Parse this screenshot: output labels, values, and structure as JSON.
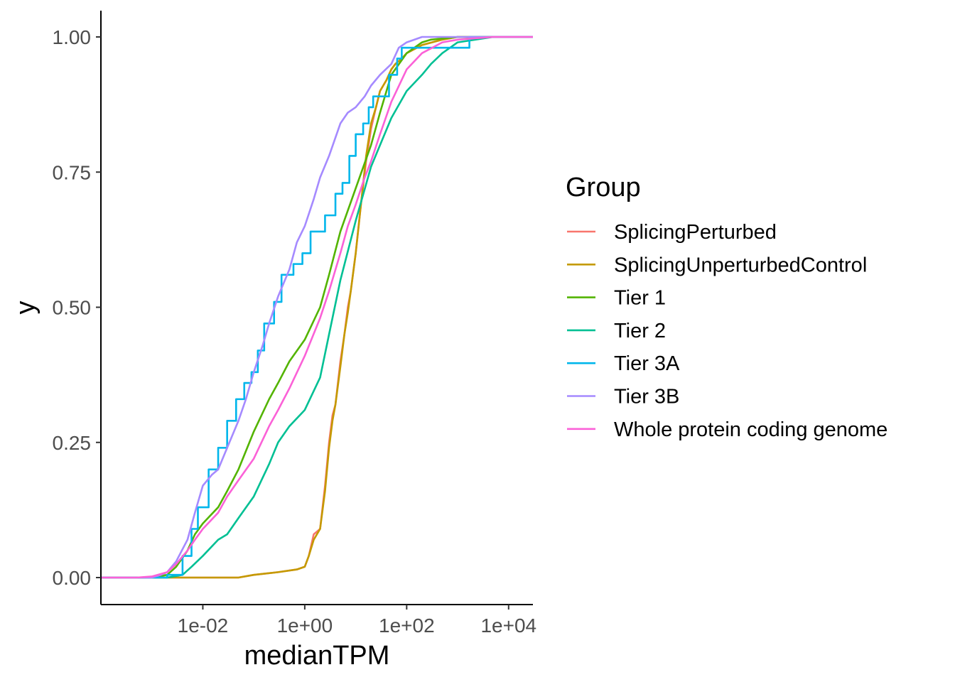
{
  "chart_data": {
    "type": "line",
    "subtype": "empirical cumulative distribution (step)",
    "xlabel": "medianTPM",
    "ylabel": "y",
    "x_scale": "log10",
    "xlim": [
      0.0001,
      30000
    ],
    "ylim": [
      0,
      1
    ],
    "x_ticks": [
      {
        "value": 0.01,
        "label": "1e-02"
      },
      {
        "value": 1,
        "label": "1e+00"
      },
      {
        "value": 100,
        "label": "1e+02"
      },
      {
        "value": 10000,
        "label": "1e+04"
      }
    ],
    "y_ticks": [
      {
        "value": 0,
        "label": "0.00"
      },
      {
        "value": 0.25,
        "label": "0.25"
      },
      {
        "value": 0.5,
        "label": "0.50"
      },
      {
        "value": 0.75,
        "label": "0.75"
      },
      {
        "value": 1,
        "label": "1.00"
      }
    ],
    "grid": false,
    "legend": {
      "title": "Group",
      "position": "right"
    },
    "series": [
      {
        "name": "SplicingPerturbed",
        "color": "#F8766D",
        "step": false,
        "x": [
          0.0001,
          0.05,
          0.1,
          0.3,
          0.7,
          1.0,
          1.2,
          1.5,
          2.0,
          2.5,
          3.0,
          3.5,
          4.0,
          5.0,
          6.0,
          7.0,
          8.0,
          10,
          13,
          16,
          20,
          25,
          30,
          40,
          50,
          60,
          80,
          100,
          200,
          500,
          1000,
          5000,
          30000
        ],
        "y": [
          0,
          0,
          0.005,
          0.01,
          0.015,
          0.02,
          0.04,
          0.08,
          0.09,
          0.17,
          0.25,
          0.3,
          0.32,
          0.4,
          0.45,
          0.5,
          0.53,
          0.6,
          0.7,
          0.77,
          0.83,
          0.87,
          0.9,
          0.92,
          0.94,
          0.95,
          0.96,
          0.97,
          0.985,
          0.995,
          1.0,
          1.0,
          1.0
        ]
      },
      {
        "name": "SplicingUnperturbedControl",
        "color": "#C49A00",
        "step": false,
        "x": [
          0.0001,
          0.05,
          0.1,
          0.3,
          0.7,
          1.0,
          1.2,
          1.5,
          2.0,
          2.5,
          3.0,
          3.5,
          4.0,
          5.0,
          6.0,
          7.0,
          8.0,
          10,
          13,
          16,
          20,
          25,
          30,
          40,
          50,
          60,
          80,
          100,
          200,
          500,
          1000,
          5000,
          30000
        ],
        "y": [
          0,
          0,
          0.005,
          0.01,
          0.015,
          0.02,
          0.04,
          0.07,
          0.09,
          0.16,
          0.24,
          0.29,
          0.32,
          0.39,
          0.45,
          0.49,
          0.53,
          0.6,
          0.7,
          0.78,
          0.84,
          0.87,
          0.9,
          0.92,
          0.94,
          0.95,
          0.96,
          0.97,
          0.985,
          0.995,
          1.0,
          1.0,
          1.0
        ]
      },
      {
        "name": "Tier 1",
        "color": "#53B400",
        "step": false,
        "x": [
          0.0001,
          0.001,
          0.002,
          0.003,
          0.005,
          0.007,
          0.01,
          0.02,
          0.03,
          0.05,
          0.1,
          0.2,
          0.3,
          0.5,
          1,
          2,
          3,
          5,
          10,
          20,
          30,
          50,
          100,
          200,
          300,
          1000,
          30000
        ],
        "y": [
          0,
          0,
          0.005,
          0.02,
          0.05,
          0.08,
          0.1,
          0.13,
          0.16,
          0.2,
          0.27,
          0.33,
          0.36,
          0.4,
          0.44,
          0.5,
          0.56,
          0.64,
          0.72,
          0.8,
          0.86,
          0.93,
          0.97,
          0.99,
          0.995,
          1.0,
          1.0
        ]
      },
      {
        "name": "Tier 2",
        "color": "#00C094",
        "step": false,
        "x": [
          0.0001,
          0.002,
          0.004,
          0.006,
          0.01,
          0.02,
          0.03,
          0.05,
          0.1,
          0.2,
          0.3,
          0.5,
          1,
          2,
          3,
          5,
          10,
          20,
          30,
          50,
          100,
          200,
          300,
          500,
          1000,
          5000,
          30000
        ],
        "y": [
          0,
          0,
          0.005,
          0.02,
          0.04,
          0.07,
          0.08,
          0.11,
          0.15,
          0.21,
          0.25,
          0.28,
          0.31,
          0.37,
          0.45,
          0.55,
          0.66,
          0.76,
          0.8,
          0.85,
          0.9,
          0.93,
          0.95,
          0.97,
          0.99,
          1.0,
          1.0
        ]
      },
      {
        "name": "Tier 3A",
        "color": "#00B6EB",
        "step": true,
        "x": [
          0.0001,
          0.002,
          0.004,
          0.006,
          0.008,
          0.013,
          0.02,
          0.03,
          0.045,
          0.065,
          0.09,
          0.12,
          0.16,
          0.25,
          0.35,
          0.6,
          0.9,
          1.3,
          2.5,
          4,
          5.5,
          7.5,
          10,
          14,
          18,
          22,
          45,
          65,
          80,
          500,
          1700,
          30000
        ],
        "y": [
          0,
          0.005,
          0.04,
          0.09,
          0.13,
          0.2,
          0.24,
          0.29,
          0.33,
          0.36,
          0.38,
          0.42,
          0.47,
          0.51,
          0.56,
          0.58,
          0.6,
          0.64,
          0.67,
          0.71,
          0.73,
          0.78,
          0.82,
          0.84,
          0.87,
          0.89,
          0.93,
          0.96,
          0.98,
          0.98,
          1.0,
          1.0
        ]
      },
      {
        "name": "Tier 3B",
        "color": "#A58AFF",
        "step": false,
        "x": [
          0.0001,
          0.001,
          0.0015,
          0.002,
          0.003,
          0.005,
          0.007,
          0.01,
          0.015,
          0.02,
          0.03,
          0.05,
          0.07,
          0.1,
          0.15,
          0.2,
          0.3,
          0.5,
          0.7,
          1,
          1.5,
          2,
          3,
          5,
          7,
          10,
          15,
          20,
          30,
          50,
          70,
          100,
          200,
          1000,
          30000
        ],
        "y": [
          0,
          0,
          0.005,
          0.01,
          0.03,
          0.07,
          0.12,
          0.17,
          0.19,
          0.2,
          0.24,
          0.29,
          0.33,
          0.38,
          0.43,
          0.47,
          0.52,
          0.57,
          0.62,
          0.65,
          0.7,
          0.74,
          0.78,
          0.84,
          0.86,
          0.87,
          0.89,
          0.91,
          0.93,
          0.95,
          0.98,
          0.99,
          1.0,
          1.0,
          1.0
        ]
      },
      {
        "name": "Whole protein coding genome",
        "color": "#FB61D7",
        "step": false,
        "x": [
          0.0001,
          0.0005,
          0.001,
          0.002,
          0.003,
          0.005,
          0.007,
          0.01,
          0.02,
          0.03,
          0.05,
          0.1,
          0.2,
          0.3,
          0.5,
          1,
          2,
          3,
          5,
          7,
          10,
          15,
          20,
          30,
          50,
          100,
          200,
          500,
          1000,
          5000,
          30000
        ],
        "y": [
          0,
          0,
          0.002,
          0.01,
          0.025,
          0.05,
          0.07,
          0.09,
          0.12,
          0.15,
          0.18,
          0.22,
          0.28,
          0.31,
          0.35,
          0.41,
          0.48,
          0.53,
          0.6,
          0.65,
          0.69,
          0.74,
          0.77,
          0.82,
          0.88,
          0.94,
          0.97,
          0.99,
          0.995,
          1.0,
          1.0
        ]
      }
    ]
  }
}
